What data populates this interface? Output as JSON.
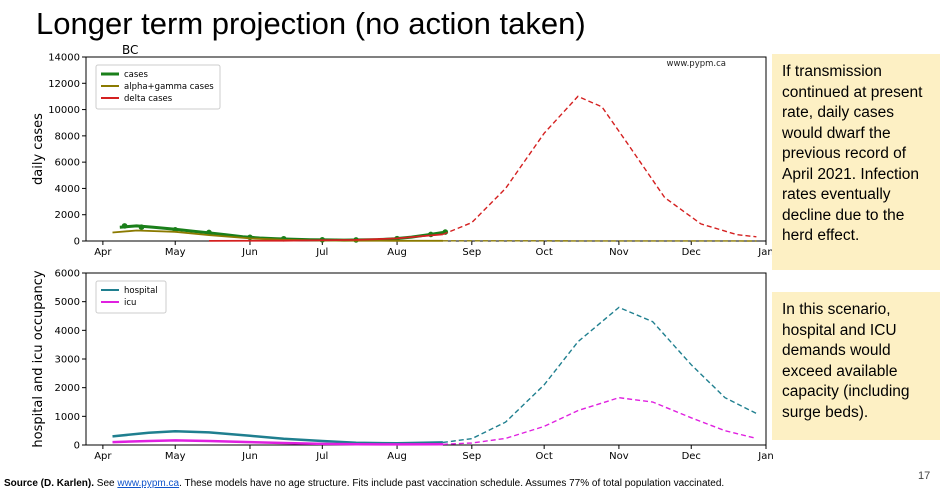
{
  "slide": {
    "title": "Longer term projection (no action taken)",
    "note1": "If transmission continued at present rate, daily cases would dwarf the previous record of April 2021. Infection rates eventually decline due to the herd effect.",
    "note2": "In this scenario, hospital and ICU demands would exceed available capacity (including surge beds).",
    "footer_source": "Source (D. Karlen).",
    "footer_see": " See ",
    "footer_link": "www.pypm.ca",
    "footer_rest": ". These models have no age structure. Fits include past vaccination schedule. Assumes 77% of total population vaccinated.",
    "page_number": "17",
    "note_bg": "#fdf0c4"
  },
  "chart_data": [
    {
      "type": "line",
      "title": "BC",
      "watermark": "www.pypm.ca",
      "ylabel": "daily cases",
      "xlabel": "",
      "x_ticks": [
        "Apr",
        "May",
        "Jun",
        "Jul",
        "Aug",
        "Sep",
        "Oct",
        "Nov",
        "Dec",
        "Jan"
      ],
      "y_ticks": [
        "0",
        "2000",
        "4000",
        "6000",
        "8000",
        "10000",
        "12000",
        "14000"
      ],
      "ylim": [
        0,
        14000
      ],
      "xlim": [
        "2021-03-25",
        "2022-01-01"
      ],
      "legend_position": "top-left",
      "grid": false,
      "series": [
        {
          "name": "cases",
          "color": "#1a7f1a",
          "style": "data-with-markers",
          "points": [
            [
              "2021-04-08",
              1050
            ],
            [
              "2021-04-15",
              1150
            ],
            [
              "2021-04-22",
              1050
            ],
            [
              "2021-05-01",
              900
            ],
            [
              "2021-05-08",
              750
            ],
            [
              "2021-05-15",
              620
            ],
            [
              "2021-05-22",
              480
            ],
            [
              "2021-05-29",
              330
            ],
            [
              "2021-06-05",
              230
            ],
            [
              "2021-06-12",
              170
            ],
            [
              "2021-06-19",
              130
            ],
            [
              "2021-06-26",
              100
            ],
            [
              "2021-07-03",
              80
            ],
            [
              "2021-07-10",
              70
            ],
            [
              "2021-07-17",
              80
            ],
            [
              "2021-07-24",
              110
            ],
            [
              "2021-07-31",
              170
            ],
            [
              "2021-08-07",
              300
            ],
            [
              "2021-08-14",
              480
            ],
            [
              "2021-08-20",
              650
            ]
          ],
          "markers": [
            [
              "2021-04-10",
              1150
            ],
            [
              "2021-04-17",
              1050
            ],
            [
              "2021-05-01",
              850
            ],
            [
              "2021-05-15",
              650
            ],
            [
              "2021-06-01",
              280
            ],
            [
              "2021-06-15",
              170
            ],
            [
              "2021-07-01",
              90
            ],
            [
              "2021-07-15",
              80
            ],
            [
              "2021-08-01",
              180
            ],
            [
              "2021-08-15",
              500
            ],
            [
              "2021-08-21",
              680
            ]
          ]
        },
        {
          "name": "alpha+gamma cases",
          "color": "#8b7a00",
          "style": "solid-then-dashed",
          "points": [
            [
              "2021-04-05",
              650
            ],
            [
              "2021-04-15",
              800
            ],
            [
              "2021-05-01",
              700
            ],
            [
              "2021-05-15",
              450
            ],
            [
              "2021-06-01",
              200
            ],
            [
              "2021-06-15",
              90
            ],
            [
              "2021-07-01",
              40
            ],
            [
              "2021-07-15",
              20
            ],
            [
              "2021-08-01",
              15
            ],
            [
              "2021-08-20",
              15
            ],
            [
              "2021-09-15",
              15
            ],
            [
              "2021-10-15",
              10
            ],
            [
              "2021-11-15",
              5
            ],
            [
              "2021-12-28",
              0
            ]
          ]
        },
        {
          "name": "delta cases",
          "color": "#d42020",
          "style": "solid-then-dashed",
          "points": [
            [
              "2021-05-15",
              5
            ],
            [
              "2021-06-15",
              20
            ],
            [
              "2021-07-15",
              80
            ],
            [
              "2021-08-01",
              200
            ],
            [
              "2021-08-20",
              500
            ],
            [
              "2021-09-01",
              1400
            ],
            [
              "2021-09-15",
              4000
            ],
            [
              "2021-10-01",
              8200
            ],
            [
              "2021-10-15",
              11000
            ],
            [
              "2021-10-25",
              10200
            ],
            [
              "2021-11-05",
              7300
            ],
            [
              "2021-11-20",
              3300
            ],
            [
              "2021-12-05",
              1300
            ],
            [
              "2021-12-20",
              480
            ],
            [
              "2021-12-28",
              320
            ]
          ]
        }
      ]
    },
    {
      "type": "line",
      "title": "",
      "ylabel": "hospital and icu occupancy",
      "xlabel": "",
      "x_ticks": [
        "Apr",
        "May",
        "Jun",
        "Jul",
        "Aug",
        "Sep",
        "Oct",
        "Nov",
        "Dec",
        "Jan"
      ],
      "y_ticks": [
        "0",
        "1000",
        "2000",
        "3000",
        "4000",
        "5000",
        "6000"
      ],
      "ylim": [
        0,
        6000
      ],
      "xlim": [
        "2021-03-25",
        "2022-01-01"
      ],
      "legend_position": "top-left",
      "grid": false,
      "series": [
        {
          "name": "hospital",
          "color": "#1f7f8f",
          "style": "solid-then-dashed",
          "points": [
            [
              "2021-04-05",
              300
            ],
            [
              "2021-04-20",
              430
            ],
            [
              "2021-05-01",
              480
            ],
            [
              "2021-05-15",
              440
            ],
            [
              "2021-06-01",
              320
            ],
            [
              "2021-06-15",
              220
            ],
            [
              "2021-07-01",
              140
            ],
            [
              "2021-07-15",
              80
            ],
            [
              "2021-08-01",
              60
            ],
            [
              "2021-08-20",
              90
            ],
            [
              "2021-09-01",
              220
            ],
            [
              "2021-09-15",
              800
            ],
            [
              "2021-10-01",
              2100
            ],
            [
              "2021-10-15",
              3600
            ],
            [
              "2021-11-01",
              4800
            ],
            [
              "2021-11-15",
              4300
            ],
            [
              "2021-12-01",
              2800
            ],
            [
              "2021-12-15",
              1650
            ],
            [
              "2021-12-28",
              1100
            ]
          ]
        },
        {
          "name": "icu",
          "color": "#e020e0",
          "style": "solid-then-dashed",
          "points": [
            [
              "2021-04-05",
              100
            ],
            [
              "2021-04-20",
              140
            ],
            [
              "2021-05-01",
              160
            ],
            [
              "2021-05-15",
              140
            ],
            [
              "2021-06-01",
              100
            ],
            [
              "2021-06-15",
              70
            ],
            [
              "2021-07-01",
              40
            ],
            [
              "2021-07-15",
              25
            ],
            [
              "2021-08-01",
              20
            ],
            [
              "2021-08-20",
              25
            ],
            [
              "2021-09-01",
              70
            ],
            [
              "2021-09-15",
              230
            ],
            [
              "2021-10-01",
              650
            ],
            [
              "2021-10-15",
              1200
            ],
            [
              "2021-11-01",
              1650
            ],
            [
              "2021-11-15",
              1500
            ],
            [
              "2021-12-01",
              950
            ],
            [
              "2021-12-15",
              500
            ],
            [
              "2021-12-28",
              230
            ]
          ]
        }
      ]
    }
  ]
}
